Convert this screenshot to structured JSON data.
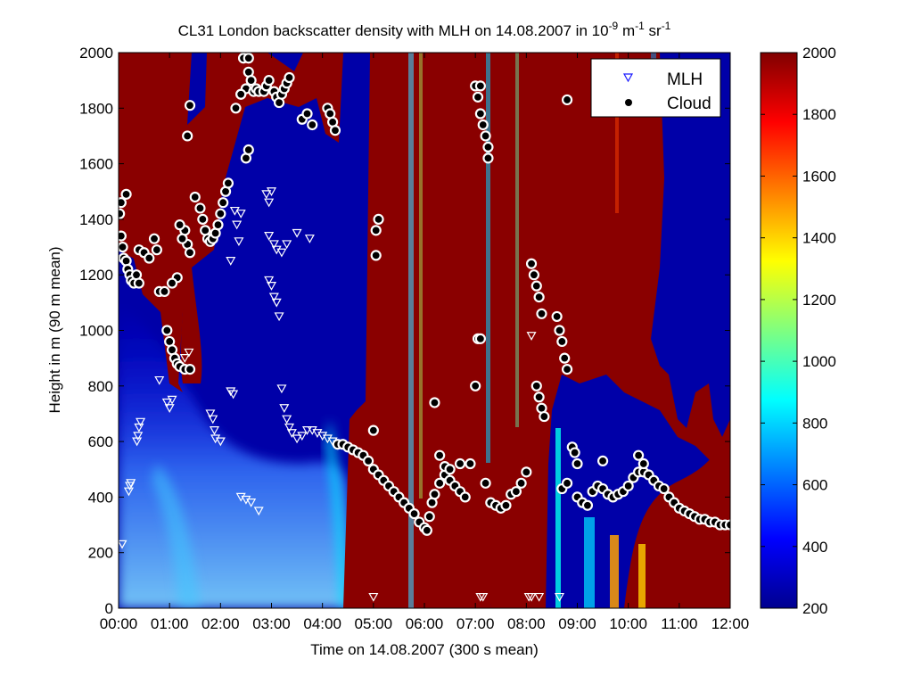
{
  "chart_data": {
    "type": "heatmap",
    "title_main": "CL31 London backscatter density with MLH on 14.08.2007 in 10",
    "title_exp1": "-9",
    "title_mid": " m",
    "title_exp2": "-1",
    "title_end": " sr",
    "title_exp3": "-1",
    "xlabel": "Time on 14.08.2007 (300 s mean)",
    "ylabel": "Height in m (90 m mean)",
    "xlim": [
      0,
      12
    ],
    "ylim": [
      0,
      2000
    ],
    "x_ticks": [
      "00:00",
      "01:00",
      "02:00",
      "03:00",
      "04:00",
      "05:00",
      "06:00",
      "07:00",
      "08:00",
      "09:00",
      "10:00",
      "11:00",
      "12:00"
    ],
    "y_ticks": [
      0,
      200,
      400,
      600,
      800,
      1000,
      1200,
      1400,
      1600,
      1800,
      2000
    ],
    "colorbar": {
      "min": 200,
      "max": 2000,
      "ticks": [
        200,
        400,
        600,
        800,
        1000,
        1200,
        1400,
        1600,
        1800,
        2000
      ]
    },
    "legend": {
      "position": "top-right",
      "entries": [
        {
          "label": "MLH",
          "marker": "triangle-down"
        },
        {
          "label": "Cloud",
          "marker": "dot"
        }
      ]
    },
    "series": [
      {
        "name": "MLH",
        "points": [
          [
            0.07,
            230
          ],
          [
            0.2,
            420
          ],
          [
            0.22,
            440
          ],
          [
            0.24,
            450
          ],
          [
            0.36,
            600
          ],
          [
            0.38,
            620
          ],
          [
            0.4,
            650
          ],
          [
            0.43,
            670
          ],
          [
            0.8,
            820
          ],
          [
            0.95,
            740
          ],
          [
            1.0,
            720
          ],
          [
            1.05,
            750
          ],
          [
            1.3,
            900
          ],
          [
            1.38,
            920
          ],
          [
            1.8,
            700
          ],
          [
            1.85,
            680
          ],
          [
            1.88,
            640
          ],
          [
            1.9,
            610
          ],
          [
            2.0,
            600
          ],
          [
            2.2,
            780
          ],
          [
            2.25,
            770
          ],
          [
            2.28,
            1430
          ],
          [
            2.32,
            1380
          ],
          [
            2.36,
            1320
          ],
          [
            2.4,
            1420
          ],
          [
            2.2,
            1250
          ],
          [
            2.4,
            400
          ],
          [
            2.5,
            390
          ],
          [
            2.6,
            380
          ],
          [
            2.75,
            350
          ],
          [
            2.9,
            1490
          ],
          [
            2.95,
            1460
          ],
          [
            3.0,
            1500
          ],
          [
            2.95,
            1340
          ],
          [
            3.05,
            1310
          ],
          [
            3.1,
            1290
          ],
          [
            2.95,
            1180
          ],
          [
            3.0,
            1160
          ],
          [
            3.05,
            1120
          ],
          [
            3.1,
            1100
          ],
          [
            3.15,
            1050
          ],
          [
            3.2,
            1280
          ],
          [
            3.3,
            1310
          ],
          [
            3.5,
            1350
          ],
          [
            3.75,
            1330
          ],
          [
            3.2,
            790
          ],
          [
            3.25,
            720
          ],
          [
            3.3,
            680
          ],
          [
            3.35,
            650
          ],
          [
            3.4,
            630
          ],
          [
            3.5,
            610
          ],
          [
            3.6,
            620
          ],
          [
            3.7,
            640
          ],
          [
            3.8,
            640
          ],
          [
            3.9,
            630
          ],
          [
            4.0,
            620
          ],
          [
            4.1,
            610
          ],
          [
            4.2,
            600
          ],
          [
            4.3,
            590
          ],
          [
            5.0,
            40
          ],
          [
            7.1,
            40
          ],
          [
            7.15,
            40
          ],
          [
            8.05,
            40
          ],
          [
            8.1,
            40
          ],
          [
            8.25,
            40
          ],
          [
            8.65,
            40
          ],
          [
            8.1,
            980
          ]
        ]
      },
      {
        "name": "Cloud",
        "points": [
          [
            0.02,
            1420
          ],
          [
            0.05,
            1340
          ],
          [
            0.08,
            1300
          ],
          [
            0.1,
            1260
          ],
          [
            0.15,
            1250
          ],
          [
            0.18,
            1220
          ],
          [
            0.22,
            1200
          ],
          [
            0.25,
            1180
          ],
          [
            0.3,
            1170
          ],
          [
            0.35,
            1200
          ],
          [
            0.4,
            1170
          ],
          [
            0.05,
            1460
          ],
          [
            0.15,
            1490
          ],
          [
            0.4,
            1290
          ],
          [
            0.5,
            1280
          ],
          [
            0.6,
            1260
          ],
          [
            0.7,
            1330
          ],
          [
            0.75,
            1290
          ],
          [
            0.8,
            1140
          ],
          [
            0.9,
            1140
          ],
          [
            0.95,
            1000
          ],
          [
            1.0,
            960
          ],
          [
            1.05,
            930
          ],
          [
            1.1,
            900
          ],
          [
            1.15,
            880
          ],
          [
            1.2,
            870
          ],
          [
            1.3,
            860
          ],
          [
            1.4,
            860
          ],
          [
            1.35,
            1700
          ],
          [
            1.4,
            1810
          ],
          [
            1.3,
            1360
          ],
          [
            1.35,
            1310
          ],
          [
            1.4,
            1280
          ],
          [
            1.2,
            1380
          ],
          [
            1.25,
            1330
          ],
          [
            1.15,
            1190
          ],
          [
            1.05,
            1170
          ],
          [
            1.5,
            1480
          ],
          [
            1.6,
            1440
          ],
          [
            1.65,
            1400
          ],
          [
            1.7,
            1360
          ],
          [
            1.75,
            1330
          ],
          [
            1.8,
            1320
          ],
          [
            1.85,
            1330
          ],
          [
            1.9,
            1350
          ],
          [
            1.95,
            1380
          ],
          [
            2.0,
            1420
          ],
          [
            2.05,
            1460
          ],
          [
            2.1,
            1500
          ],
          [
            2.15,
            1530
          ],
          [
            2.3,
            1800
          ],
          [
            2.4,
            1850
          ],
          [
            2.5,
            1870
          ],
          [
            2.55,
            1930
          ],
          [
            2.6,
            1900
          ],
          [
            2.65,
            1860
          ],
          [
            2.7,
            1870
          ],
          [
            2.75,
            1860
          ],
          [
            2.85,
            1860
          ],
          [
            2.9,
            1880
          ],
          [
            2.95,
            1900
          ],
          [
            2.4,
            1850
          ],
          [
            2.5,
            1620
          ],
          [
            2.55,
            1650
          ],
          [
            2.45,
            1980
          ],
          [
            2.55,
            1980
          ],
          [
            3.05,
            1860
          ],
          [
            3.1,
            1840
          ],
          [
            3.15,
            1820
          ],
          [
            3.2,
            1850
          ],
          [
            3.25,
            1870
          ],
          [
            3.3,
            1890
          ],
          [
            3.35,
            1910
          ],
          [
            3.6,
            1760
          ],
          [
            3.7,
            1780
          ],
          [
            3.8,
            1740
          ],
          [
            4.1,
            1800
          ],
          [
            4.15,
            1780
          ],
          [
            4.2,
            1750
          ],
          [
            4.25,
            1720
          ],
          [
            4.3,
            590
          ],
          [
            4.4,
            590
          ],
          [
            4.5,
            580
          ],
          [
            4.6,
            570
          ],
          [
            4.7,
            560
          ],
          [
            4.8,
            550
          ],
          [
            4.9,
            530
          ],
          [
            5.0,
            500
          ],
          [
            5.1,
            480
          ],
          [
            5.0,
            640
          ],
          [
            5.1,
            1400
          ],
          [
            5.05,
            1360
          ],
          [
            5.05,
            1270
          ],
          [
            5.2,
            460
          ],
          [
            5.3,
            440
          ],
          [
            5.4,
            420
          ],
          [
            5.5,
            400
          ],
          [
            5.6,
            380
          ],
          [
            5.7,
            360
          ],
          [
            5.8,
            340
          ],
          [
            5.9,
            310
          ],
          [
            6.0,
            290
          ],
          [
            6.05,
            280
          ],
          [
            6.1,
            330
          ],
          [
            6.15,
            380
          ],
          [
            6.2,
            410
          ],
          [
            6.3,
            450
          ],
          [
            6.4,
            480
          ],
          [
            6.5,
            460
          ],
          [
            6.6,
            440
          ],
          [
            6.7,
            420
          ],
          [
            6.8,
            400
          ],
          [
            6.2,
            740
          ],
          [
            6.3,
            550
          ],
          [
            6.4,
            510
          ],
          [
            6.5,
            500
          ],
          [
            6.7,
            520
          ],
          [
            6.9,
            520
          ],
          [
            7.0,
            800
          ],
          [
            7.05,
            970
          ],
          [
            7.1,
            970
          ],
          [
            7.0,
            1880
          ],
          [
            7.05,
            1840
          ],
          [
            7.1,
            1780
          ],
          [
            7.15,
            1740
          ],
          [
            7.2,
            1700
          ],
          [
            7.25,
            1620
          ],
          [
            7.25,
            1660
          ],
          [
            7.1,
            1880
          ],
          [
            7.2,
            450
          ],
          [
            7.3,
            380
          ],
          [
            7.4,
            370
          ],
          [
            7.5,
            360
          ],
          [
            7.6,
            370
          ],
          [
            7.7,
            410
          ],
          [
            7.8,
            420
          ],
          [
            7.9,
            450
          ],
          [
            8.0,
            490
          ],
          [
            8.1,
            1240
          ],
          [
            8.15,
            1200
          ],
          [
            8.2,
            1160
          ],
          [
            8.25,
            1120
          ],
          [
            8.3,
            1060
          ],
          [
            8.2,
            800
          ],
          [
            8.25,
            760
          ],
          [
            8.3,
            720
          ],
          [
            8.35,
            690
          ],
          [
            8.6,
            1050
          ],
          [
            8.65,
            1000
          ],
          [
            8.7,
            960
          ],
          [
            8.75,
            900
          ],
          [
            8.8,
            860
          ],
          [
            8.8,
            1830
          ],
          [
            8.9,
            580
          ],
          [
            8.95,
            560
          ],
          [
            9.0,
            520
          ],
          [
            8.7,
            430
          ],
          [
            8.8,
            450
          ],
          [
            9.0,
            400
          ],
          [
            9.1,
            380
          ],
          [
            9.2,
            370
          ],
          [
            9.3,
            420
          ],
          [
            9.4,
            440
          ],
          [
            9.5,
            430
          ],
          [
            9.6,
            410
          ],
          [
            9.7,
            400
          ],
          [
            9.8,
            410
          ],
          [
            9.9,
            420
          ],
          [
            10.0,
            440
          ],
          [
            10.1,
            470
          ],
          [
            10.2,
            490
          ],
          [
            10.3,
            490
          ],
          [
            10.4,
            480
          ],
          [
            10.5,
            460
          ],
          [
            10.6,
            440
          ],
          [
            10.7,
            430
          ],
          [
            10.8,
            400
          ],
          [
            10.9,
            380
          ],
          [
            11.0,
            360
          ],
          [
            11.1,
            350
          ],
          [
            11.2,
            340
          ],
          [
            11.3,
            330
          ],
          [
            11.4,
            320
          ],
          [
            11.5,
            320
          ],
          [
            11.6,
            310
          ],
          [
            11.7,
            310
          ],
          [
            11.8,
            300
          ],
          [
            11.9,
            300
          ],
          [
            12.0,
            300
          ],
          [
            9.5,
            530
          ],
          [
            10.2,
            550
          ],
          [
            10.3,
            520
          ]
        ]
      }
    ]
  }
}
